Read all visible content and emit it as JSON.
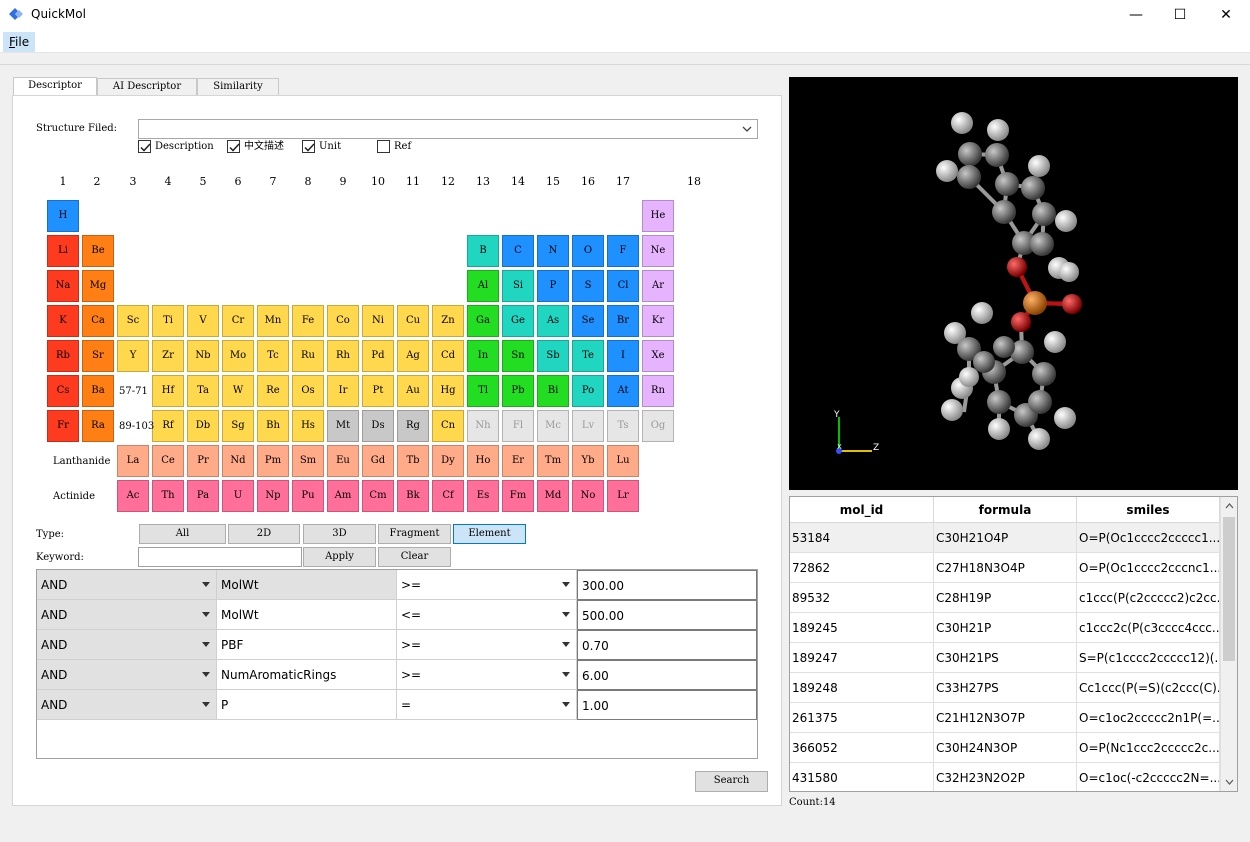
{
  "window": {
    "title": "QuickMol",
    "minimize": "—",
    "maximize": "☐",
    "close": "✕"
  },
  "menu": {
    "file_prefix": "F",
    "file_rest": "ile"
  },
  "tabs": [
    {
      "label": "Descriptor",
      "active": true
    },
    {
      "label": "AI Descriptor",
      "active": false
    },
    {
      "label": "Similarity",
      "active": false
    }
  ],
  "structure": {
    "label": "Structure Filed:",
    "value": ""
  },
  "checkboxes": [
    {
      "label": "Description",
      "checked": true
    },
    {
      "label": "中文描述",
      "checked": true
    },
    {
      "label": "Unit",
      "checked": true
    },
    {
      "label": "Ref",
      "checked": false
    }
  ],
  "groups": [
    "1",
    "2",
    "3",
    "4",
    "5",
    "6",
    "7",
    "8",
    "9",
    "10",
    "11",
    "12",
    "13",
    "14",
    "15",
    "16",
    "17",
    "18"
  ],
  "row_labels": {
    "lanthanide": "Lanthanide",
    "actinide": "Actinide",
    "lan_range": "57-71",
    "act_range": "89-103"
  },
  "elements": [
    {
      "s": "H",
      "r": 1,
      "c": 1,
      "t": "nonmetal"
    },
    {
      "s": "He",
      "r": 1,
      "c": 18,
      "t": "noble"
    },
    {
      "s": "Li",
      "r": 2,
      "c": 1,
      "t": "alkali"
    },
    {
      "s": "Be",
      "r": 2,
      "c": 2,
      "t": "alkaline"
    },
    {
      "s": "B",
      "r": 2,
      "c": 13,
      "t": "metalloid"
    },
    {
      "s": "C",
      "r": 2,
      "c": 14,
      "t": "nonmetal"
    },
    {
      "s": "N",
      "r": 2,
      "c": 15,
      "t": "nonmetal"
    },
    {
      "s": "O",
      "r": 2,
      "c": 16,
      "t": "nonmetal"
    },
    {
      "s": "F",
      "r": 2,
      "c": 17,
      "t": "nonmetal"
    },
    {
      "s": "Ne",
      "r": 2,
      "c": 18,
      "t": "noble"
    },
    {
      "s": "Na",
      "r": 3,
      "c": 1,
      "t": "alkali"
    },
    {
      "s": "Mg",
      "r": 3,
      "c": 2,
      "t": "alkaline"
    },
    {
      "s": "Al",
      "r": 3,
      "c": 13,
      "t": "post"
    },
    {
      "s": "Si",
      "r": 3,
      "c": 14,
      "t": "metalloid"
    },
    {
      "s": "P",
      "r": 3,
      "c": 15,
      "t": "nonmetal"
    },
    {
      "s": "S",
      "r": 3,
      "c": 16,
      "t": "nonmetal"
    },
    {
      "s": "Cl",
      "r": 3,
      "c": 17,
      "t": "nonmetal"
    },
    {
      "s": "Ar",
      "r": 3,
      "c": 18,
      "t": "noble"
    },
    {
      "s": "K",
      "r": 4,
      "c": 1,
      "t": "alkali"
    },
    {
      "s": "Ca",
      "r": 4,
      "c": 2,
      "t": "alkaline"
    },
    {
      "s": "Sc",
      "r": 4,
      "c": 3,
      "t": "transition"
    },
    {
      "s": "Ti",
      "r": 4,
      "c": 4,
      "t": "transition"
    },
    {
      "s": "V",
      "r": 4,
      "c": 5,
      "t": "transition"
    },
    {
      "s": "Cr",
      "r": 4,
      "c": 6,
      "t": "transition"
    },
    {
      "s": "Mn",
      "r": 4,
      "c": 7,
      "t": "transition"
    },
    {
      "s": "Fe",
      "r": 4,
      "c": 8,
      "t": "transition"
    },
    {
      "s": "Co",
      "r": 4,
      "c": 9,
      "t": "transition"
    },
    {
      "s": "Ni",
      "r": 4,
      "c": 10,
      "t": "transition"
    },
    {
      "s": "Cu",
      "r": 4,
      "c": 11,
      "t": "transition"
    },
    {
      "s": "Zn",
      "r": 4,
      "c": 12,
      "t": "transition"
    },
    {
      "s": "Ga",
      "r": 4,
      "c": 13,
      "t": "post"
    },
    {
      "s": "Ge",
      "r": 4,
      "c": 14,
      "t": "metalloid"
    },
    {
      "s": "As",
      "r": 4,
      "c": 15,
      "t": "metalloid"
    },
    {
      "s": "Se",
      "r": 4,
      "c": 16,
      "t": "nonmetal"
    },
    {
      "s": "Br",
      "r": 4,
      "c": 17,
      "t": "nonmetal"
    },
    {
      "s": "Kr",
      "r": 4,
      "c": 18,
      "t": "noble"
    },
    {
      "s": "Rb",
      "r": 5,
      "c": 1,
      "t": "alkali"
    },
    {
      "s": "Sr",
      "r": 5,
      "c": 2,
      "t": "alkaline"
    },
    {
      "s": "Y",
      "r": 5,
      "c": 3,
      "t": "transition"
    },
    {
      "s": "Zr",
      "r": 5,
      "c": 4,
      "t": "transition"
    },
    {
      "s": "Nb",
      "r": 5,
      "c": 5,
      "t": "transition"
    },
    {
      "s": "Mo",
      "r": 5,
      "c": 6,
      "t": "transition"
    },
    {
      "s": "Tc",
      "r": 5,
      "c": 7,
      "t": "transition"
    },
    {
      "s": "Ru",
      "r": 5,
      "c": 8,
      "t": "transition"
    },
    {
      "s": "Rh",
      "r": 5,
      "c": 9,
      "t": "transition"
    },
    {
      "s": "Pd",
      "r": 5,
      "c": 10,
      "t": "transition"
    },
    {
      "s": "Ag",
      "r": 5,
      "c": 11,
      "t": "transition"
    },
    {
      "s": "Cd",
      "r": 5,
      "c": 12,
      "t": "transition"
    },
    {
      "s": "In",
      "r": 5,
      "c": 13,
      "t": "post"
    },
    {
      "s": "Sn",
      "r": 5,
      "c": 14,
      "t": "post"
    },
    {
      "s": "Sb",
      "r": 5,
      "c": 15,
      "t": "metalloid"
    },
    {
      "s": "Te",
      "r": 5,
      "c": 16,
      "t": "metalloid"
    },
    {
      "s": "I",
      "r": 5,
      "c": 17,
      "t": "nonmetal"
    },
    {
      "s": "Xe",
      "r": 5,
      "c": 18,
      "t": "noble"
    },
    {
      "s": "Cs",
      "r": 6,
      "c": 1,
      "t": "alkali"
    },
    {
      "s": "Ba",
      "r": 6,
      "c": 2,
      "t": "alkaline"
    },
    {
      "s": "Hf",
      "r": 6,
      "c": 4,
      "t": "transition"
    },
    {
      "s": "Ta",
      "r": 6,
      "c": 5,
      "t": "transition"
    },
    {
      "s": "W",
      "r": 6,
      "c": 6,
      "t": "transition"
    },
    {
      "s": "Re",
      "r": 6,
      "c": 7,
      "t": "transition"
    },
    {
      "s": "Os",
      "r": 6,
      "c": 8,
      "t": "transition"
    },
    {
      "s": "Ir",
      "r": 6,
      "c": 9,
      "t": "transition"
    },
    {
      "s": "Pt",
      "r": 6,
      "c": 10,
      "t": "transition"
    },
    {
      "s": "Au",
      "r": 6,
      "c": 11,
      "t": "transition"
    },
    {
      "s": "Hg",
      "r": 6,
      "c": 12,
      "t": "transition"
    },
    {
      "s": "Tl",
      "r": 6,
      "c": 13,
      "t": "post"
    },
    {
      "s": "Pb",
      "r": 6,
      "c": 14,
      "t": "post"
    },
    {
      "s": "Bi",
      "r": 6,
      "c": 15,
      "t": "post"
    },
    {
      "s": "Po",
      "r": 6,
      "c": 16,
      "t": "metalloid"
    },
    {
      "s": "At",
      "r": 6,
      "c": 17,
      "t": "nonmetal"
    },
    {
      "s": "Rn",
      "r": 6,
      "c": 18,
      "t": "noble"
    },
    {
      "s": "Fr",
      "r": 7,
      "c": 1,
      "t": "alkali"
    },
    {
      "s": "Ra",
      "r": 7,
      "c": 2,
      "t": "alkaline"
    },
    {
      "s": "Rf",
      "r": 7,
      "c": 4,
      "t": "transition"
    },
    {
      "s": "Db",
      "r": 7,
      "c": 5,
      "t": "transition"
    },
    {
      "s": "Sg",
      "r": 7,
      "c": 6,
      "t": "transition"
    },
    {
      "s": "Bh",
      "r": 7,
      "c": 7,
      "t": "transition"
    },
    {
      "s": "Hs",
      "r": 7,
      "c": 8,
      "t": "transition"
    },
    {
      "s": "Mt",
      "r": 7,
      "c": 9,
      "t": "unknown"
    },
    {
      "s": "Ds",
      "r": 7,
      "c": 10,
      "t": "unknown"
    },
    {
      "s": "Rg",
      "r": 7,
      "c": 11,
      "t": "unknown"
    },
    {
      "s": "Cn",
      "r": 7,
      "c": 12,
      "t": "transition"
    },
    {
      "s": "Nh",
      "r": 7,
      "c": 13,
      "t": "unknown2"
    },
    {
      "s": "Fl",
      "r": 7,
      "c": 14,
      "t": "unknown2"
    },
    {
      "s": "Mc",
      "r": 7,
      "c": 15,
      "t": "unknown2"
    },
    {
      "s": "Lv",
      "r": 7,
      "c": 16,
      "t": "unknown2"
    },
    {
      "s": "Ts",
      "r": 7,
      "c": 17,
      "t": "unknown2"
    },
    {
      "s": "Og",
      "r": 7,
      "c": 18,
      "t": "unknown2"
    },
    {
      "s": "La",
      "r": 8,
      "c": 3,
      "t": "lanth"
    },
    {
      "s": "Ce",
      "r": 8,
      "c": 4,
      "t": "lanth"
    },
    {
      "s": "Pr",
      "r": 8,
      "c": 5,
      "t": "lanth"
    },
    {
      "s": "Nd",
      "r": 8,
      "c": 6,
      "t": "lanth"
    },
    {
      "s": "Pm",
      "r": 8,
      "c": 7,
      "t": "lanth"
    },
    {
      "s": "Sm",
      "r": 8,
      "c": 8,
      "t": "lanth"
    },
    {
      "s": "Eu",
      "r": 8,
      "c": 9,
      "t": "lanth"
    },
    {
      "s": "Gd",
      "r": 8,
      "c": 10,
      "t": "lanth"
    },
    {
      "s": "Tb",
      "r": 8,
      "c": 11,
      "t": "lanth"
    },
    {
      "s": "Dy",
      "r": 8,
      "c": 12,
      "t": "lanth"
    },
    {
      "s": "Ho",
      "r": 8,
      "c": 13,
      "t": "lanth"
    },
    {
      "s": "Er",
      "r": 8,
      "c": 14,
      "t": "lanth"
    },
    {
      "s": "Tm",
      "r": 8,
      "c": 15,
      "t": "lanth"
    },
    {
      "s": "Yb",
      "r": 8,
      "c": 16,
      "t": "lanth"
    },
    {
      "s": "Lu",
      "r": 8,
      "c": 17,
      "t": "lanth"
    },
    {
      "s": "Ac",
      "r": 9,
      "c": 3,
      "t": "actin"
    },
    {
      "s": "Th",
      "r": 9,
      "c": 4,
      "t": "actin"
    },
    {
      "s": "Pa",
      "r": 9,
      "c": 5,
      "t": "actin"
    },
    {
      "s": "U",
      "r": 9,
      "c": 6,
      "t": "actin"
    },
    {
      "s": "Np",
      "r": 9,
      "c": 7,
      "t": "actin"
    },
    {
      "s": "Pu",
      "r": 9,
      "c": 8,
      "t": "actin"
    },
    {
      "s": "Am",
      "r": 9,
      "c": 9,
      "t": "actin"
    },
    {
      "s": "Cm",
      "r": 9,
      "c": 10,
      "t": "actin"
    },
    {
      "s": "Bk",
      "r": 9,
      "c": 11,
      "t": "actin"
    },
    {
      "s": "Cf",
      "r": 9,
      "c": 12,
      "t": "actin"
    },
    {
      "s": "Es",
      "r": 9,
      "c": 13,
      "t": "actin"
    },
    {
      "s": "Fm",
      "r": 9,
      "c": 14,
      "t": "actin"
    },
    {
      "s": "Md",
      "r": 9,
      "c": 15,
      "t": "actin"
    },
    {
      "s": "No",
      "r": 9,
      "c": 16,
      "t": "actin"
    },
    {
      "s": "Lr",
      "r": 9,
      "c": 17,
      "t": "actin"
    }
  ],
  "element_colors": {
    "nonmetal": "#1e90ff",
    "noble": "#e6b3ff",
    "alkali": "#ff3b1f",
    "alkaline": "#ff7f14",
    "metalloid": "#20d6c0",
    "post": "#22dd22",
    "transition": "#ffd84d",
    "unknown": "#c8c8c8",
    "unknown2": "#e6e6e6",
    "lanth": "#ffaa88",
    "actin": "#ff6f9a"
  },
  "type_filter": {
    "label": "Type:",
    "buttons": [
      "All",
      "2D",
      "3D",
      "Fragment",
      "Element"
    ],
    "selected": "Element"
  },
  "keyword": {
    "label": "Keyword:",
    "value": "",
    "apply": "Apply",
    "clear": "Clear"
  },
  "filters": [
    {
      "logic": "AND",
      "field": "MolWt",
      "op": ">=",
      "value": "300.00"
    },
    {
      "logic": "AND",
      "field": "MolWt",
      "op": "<=",
      "value": "500.00"
    },
    {
      "logic": "AND",
      "field": "PBF",
      "op": ">=",
      "value": "0.70"
    },
    {
      "logic": "AND",
      "field": "NumAromaticRings",
      "op": ">=",
      "value": "6.00"
    },
    {
      "logic": "AND",
      "field": "P",
      "op": "=",
      "value": "1.00"
    }
  ],
  "search_label": "Search",
  "viewer": {
    "axis_y": "Y",
    "axis_z": "Z",
    "axis_x": "X"
  },
  "table": {
    "columns": [
      "mol_id",
      "formula",
      "smiles"
    ],
    "rows": [
      [
        "53184",
        "C30H21O4P",
        "O=P(Oc1cccc2ccccc1..."
      ],
      [
        "72862",
        "C27H18N3O4P",
        "O=P(Oc1cccc2cccnc1..."
      ],
      [
        "89532",
        "C28H19P",
        "c1ccc(P(c2ccccc2)c2cc..."
      ],
      [
        "189245",
        "C30H21P",
        "c1ccc2c(P(c3cccc4ccc..."
      ],
      [
        "189247",
        "C30H21PS",
        "S=P(c1cccc2ccccc12)(..."
      ],
      [
        "189248",
        "C33H27PS",
        "Cc1ccc(P(=S)(c2ccc(C)..."
      ],
      [
        "261375",
        "C21H12N3O7P",
        "O=c1oc2ccccc2n1P(=..."
      ],
      [
        "366052",
        "C30H24N3OP",
        "O=P(Nc1ccc2ccccc2c..."
      ],
      [
        "431580",
        "C32H23N2O2P",
        "O=c1oc(-c2ccccc2N=..."
      ]
    ]
  },
  "count_label": "Count:14"
}
